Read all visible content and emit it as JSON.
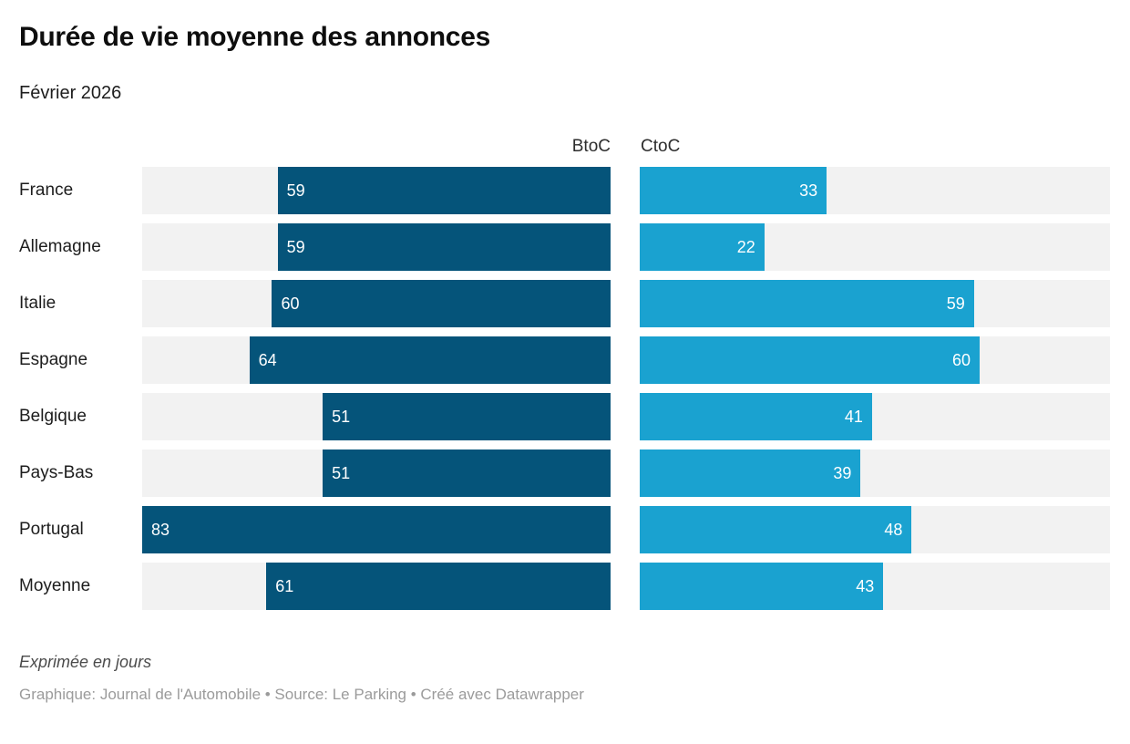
{
  "header": {
    "title": "Durée de vie moyenne des annonces",
    "subtitle": "Février 2026"
  },
  "chart_data": {
    "type": "bar",
    "orientation": "horizontal",
    "unit": "jours",
    "categories": [
      "France",
      "Allemagne",
      "Italie",
      "Espagne",
      "Belgique",
      "Pays-Bas",
      "Portugal",
      "Moyenne"
    ],
    "series": [
      {
        "name": "BtoC",
        "color": "#05547a",
        "anchor": "right",
        "values": [
          59,
          59,
          60,
          64,
          51,
          51,
          83,
          61
        ]
      },
      {
        "name": "CtoC",
        "color": "#1aa2d0",
        "anchor": "left",
        "values": [
          33,
          22,
          59,
          60,
          41,
          39,
          48,
          43
        ]
      }
    ],
    "xmax": 83,
    "track_color": "#f2f2f2",
    "value_label_color": "#ffffff",
    "grid": false,
    "legend_position": "column-headers"
  },
  "footer": {
    "note": "Exprimée en jours",
    "byline": "Graphique: Journal de l'Automobile • Source: Le Parking • Créé avec Datawrapper"
  }
}
